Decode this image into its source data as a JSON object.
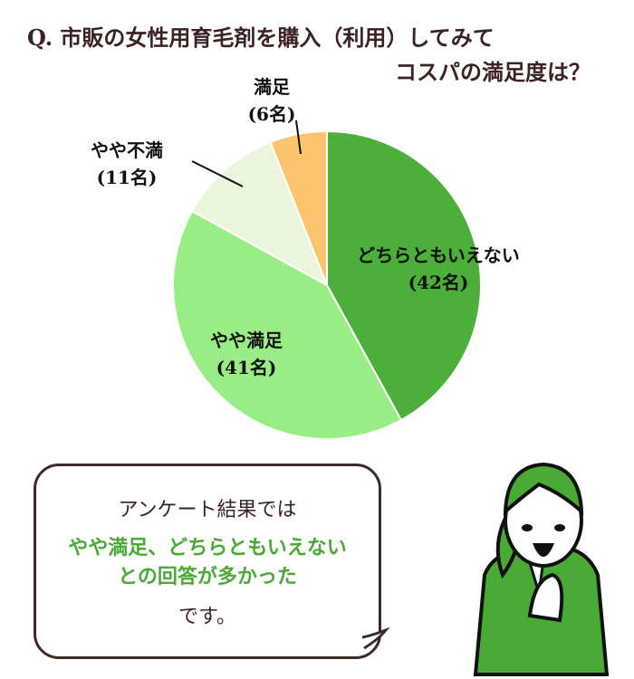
{
  "title": {
    "line1": "Q. 市販の女性用育毛剤を購入（利用）してみて",
    "line2": "コスパの満足度は？"
  },
  "chart_data": {
    "type": "pie",
    "title": "Q. 市販の女性用育毛剤を購入（利用）してみて コスパの満足度は？",
    "unit": "名",
    "start": "top",
    "direction": "clockwise",
    "slices": [
      {
        "label": "どちらともいえない",
        "value": 42,
        "value_label": "(42名)",
        "color": "#4caf3a"
      },
      {
        "label": "やや満足",
        "value": 41,
        "value_label": "(41名)",
        "color": "#98ee85"
      },
      {
        "label": "やや不満",
        "value": 11,
        "value_label": "(11名)",
        "color": "#eaf5dc"
      },
      {
        "label": "満足",
        "value": 6,
        "value_label": "(6名)",
        "color": "#fcc46c"
      }
    ]
  },
  "bubble": {
    "line1": "アンケート結果では",
    "line2": "やや満足、どちらともいえない",
    "line3": "との回答が多かった",
    "line4": "です。"
  },
  "colors": {
    "accent": "#4aaa36",
    "title": "#3d2224"
  }
}
